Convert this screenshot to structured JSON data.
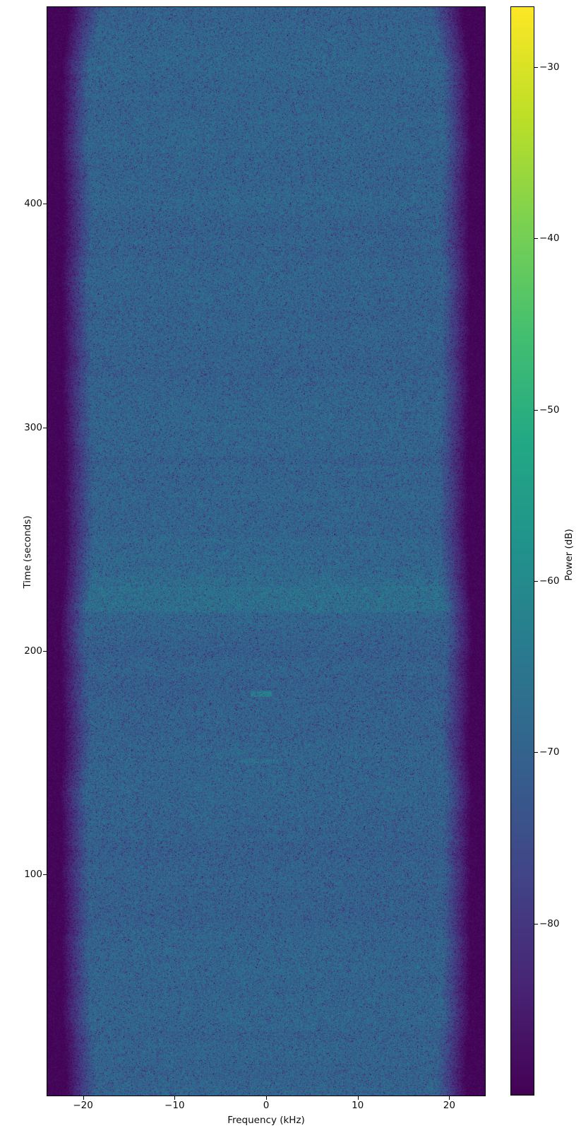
{
  "figure": {
    "background": "#ffffff",
    "text_color": "#0d0d0d"
  },
  "chart_data": {
    "type": "heatmap",
    "subtype": "spectrogram",
    "title": "",
    "xlabel": "Frequency (kHz)",
    "ylabel": "Time (seconds)",
    "colorbar_label": "Power (dB)",
    "x_range_khz": [
      -23.9,
      23.9
    ],
    "y_range_seconds": [
      1,
      488
    ],
    "color_range_db": [
      -90,
      -26.5
    ],
    "x_ticks": [
      -20,
      -10,
      0,
      10,
      20
    ],
    "y_ticks": [
      100,
      200,
      300,
      400
    ],
    "colorbar_ticks": [
      -30,
      -40,
      -50,
      -60,
      -70,
      -80
    ],
    "colormap": "viridis",
    "viridis_stops": [
      [
        0.0,
        "#440154"
      ],
      [
        0.1,
        "#482475"
      ],
      [
        0.2,
        "#414487"
      ],
      [
        0.3,
        "#355f8d"
      ],
      [
        0.4,
        "#2a788e"
      ],
      [
        0.5,
        "#21918c"
      ],
      [
        0.6,
        "#22a884"
      ],
      [
        0.7,
        "#44bf70"
      ],
      [
        0.8,
        "#7ad151"
      ],
      [
        0.9,
        "#bddf26"
      ],
      [
        1.0,
        "#fde725"
      ]
    ],
    "body_level_db": -70.2,
    "noise_floor_db": -89.5,
    "signal_band_edge_khz": 19.3,
    "signal_band_stop_khz": 22.3,
    "time_bands": [
      {
        "t0": 217.5,
        "t1": 228.0,
        "delta_db": 2.6
      },
      {
        "t0": 228.0,
        "t1": 232.5,
        "delta_db": 1.5
      },
      {
        "t0": 232.5,
        "t1": 237.5,
        "delta_db": 0.8
      },
      {
        "t0": 248.5,
        "t1": 251.5,
        "delta_db": 0.9
      },
      {
        "t0": 283.5,
        "t1": 286.5,
        "delta_db": -1.2
      },
      {
        "t0": 189.5,
        "t1": 192.0,
        "delta_db": 0.6
      },
      {
        "t0": 115.0,
        "t1": 117.5,
        "delta_db": 0.6
      }
    ],
    "bursts": [
      {
        "f0": -1.7,
        "f1": 0.6,
        "t0": 179.4,
        "t1": 181.9,
        "delta_db": 7.0
      },
      {
        "f0": -2.9,
        "f1": 1.8,
        "t0": 149.6,
        "t1": 151.5,
        "delta_db": 2.5
      }
    ]
  }
}
